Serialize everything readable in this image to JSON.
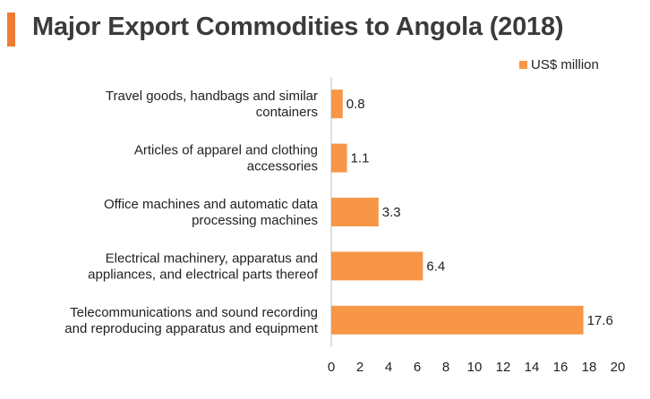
{
  "header": {
    "title": "Major Export Commodities to Angola (2018)"
  },
  "colors": {
    "accent": "#f07d33",
    "bar": "#f79646"
  },
  "chart_data": {
    "type": "bar",
    "orientation": "horizontal",
    "categories": [
      [
        "Travel goods, handbags and similar",
        "containers"
      ],
      [
        "Articles of apparel and clothing",
        "accessories"
      ],
      [
        "Office machines and automatic data",
        "processing machines"
      ],
      [
        "Electrical machinery, apparatus and",
        "appliances, and electrical parts thereof"
      ],
      [
        "Telecommunications and sound recording",
        "and reproducing apparatus and equipment"
      ]
    ],
    "series": [
      {
        "name": "US$ million",
        "values": [
          0.8,
          1.1,
          3.3,
          6.4,
          17.6
        ]
      }
    ],
    "value_labels": [
      "0.8",
      "1.1",
      "3.3",
      "6.4",
      "17.6"
    ],
    "x_ticks": [
      "0",
      "2",
      "4",
      "6",
      "8",
      "10",
      "12",
      "14",
      "16",
      "18",
      "20"
    ],
    "xlim": [
      0,
      20
    ],
    "grid": false,
    "legend_position": "top-right"
  }
}
